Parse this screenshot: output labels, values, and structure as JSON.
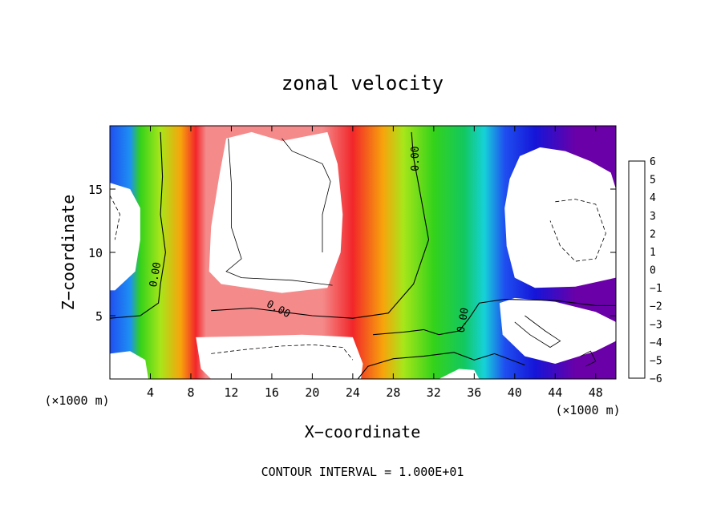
{
  "chart_data": {
    "type": "heatmap",
    "title": "zonal velocity",
    "xlabel": "X−coordinate",
    "ylabel": "Z−coordinate",
    "x_unit_left": "(×1000 m)",
    "x_unit_right": "(×1000 m)",
    "footer": "CONTOUR INTERVAL = 1.000E+01",
    "xlim": [
      0,
      50
    ],
    "ylim": [
      0,
      20
    ],
    "x_ticks": [
      {
        "value": 4,
        "label": "4"
      },
      {
        "value": 8,
        "label": "8"
      },
      {
        "value": 12,
        "label": "12"
      },
      {
        "value": 16,
        "label": "16"
      },
      {
        "value": 20,
        "label": "20"
      },
      {
        "value": 24,
        "label": "24"
      },
      {
        "value": 28,
        "label": "28"
      },
      {
        "value": 32,
        "label": "32"
      },
      {
        "value": 36,
        "label": "36"
      },
      {
        "value": 40,
        "label": "40"
      },
      {
        "value": 44,
        "label": "44"
      },
      {
        "value": 48,
        "label": "48"
      }
    ],
    "y_ticks": [
      {
        "value": 5,
        "label": "5"
      },
      {
        "value": 10,
        "label": "10"
      },
      {
        "value": 15,
        "label": "15"
      }
    ],
    "colorbar": {
      "min": -6,
      "max": 6,
      "labels": [
        {
          "value": 6,
          "label": "6"
        },
        {
          "value": 5,
          "label": "5"
        },
        {
          "value": 4,
          "label": "4"
        },
        {
          "value": 3,
          "label": "3"
        },
        {
          "value": 2,
          "label": "2"
        },
        {
          "value": 1,
          "label": "1"
        },
        {
          "value": 0,
          "label": "0"
        },
        {
          "value": -1,
          "label": "−1"
        },
        {
          "value": -2,
          "label": "−2"
        },
        {
          "value": -3,
          "label": "−3"
        },
        {
          "value": -4,
          "label": "−4"
        },
        {
          "value": -5,
          "label": "−5"
        },
        {
          "value": -6,
          "label": "−6"
        }
      ],
      "colors": [
        "#6a00a8",
        "#1515d8",
        "#1f4ff0",
        "#1e90f2",
        "#16d2d8",
        "#12c860",
        "#34d21a",
        "#a8e61a",
        "#f2e20c",
        "#f7a40c",
        "#f25a12",
        "#f2262a",
        "#f58a8a"
      ]
    },
    "contour_labels": [
      "0.00",
      "0.00",
      "0.00",
      "0.00"
    ],
    "bands": [
      {
        "x": 0,
        "value": -4.5,
        "saturated": "low"
      },
      {
        "x": 2,
        "value": -3,
        "saturated": null
      },
      {
        "x": 3,
        "value": 0,
        "saturated": null
      },
      {
        "x": 5,
        "value": 0.5,
        "saturated": null
      },
      {
        "x": 7,
        "value": 2.5,
        "saturated": null
      },
      {
        "x": 8.5,
        "value": 4.5,
        "saturated": null
      },
      {
        "x": 9.5,
        "value": 6,
        "saturated": "high"
      },
      {
        "x": 21,
        "value": 6,
        "saturated": "high"
      },
      {
        "x": 24,
        "value": 5,
        "saturated": null
      },
      {
        "x": 27,
        "value": 3,
        "saturated": null
      },
      {
        "x": 29,
        "value": 1,
        "saturated": null
      },
      {
        "x": 32,
        "value": 0,
        "saturated": null
      },
      {
        "x": 35,
        "value": -1,
        "saturated": null
      },
      {
        "x": 37,
        "value": -2.5,
        "saturated": null
      },
      {
        "x": 39,
        "value": -4,
        "saturated": null
      },
      {
        "x": 42,
        "value": -5,
        "saturated": null
      },
      {
        "x": 46,
        "value": -6,
        "saturated": "low"
      },
      {
        "x": 50,
        "value": -6,
        "saturated": "low"
      }
    ],
    "saturated_regions": [
      {
        "name": "white-region-top-center",
        "level": "high",
        "points": [
          [
            11.5,
            19
          ],
          [
            14,
            19.5
          ],
          [
            17,
            18.8
          ],
          [
            21.5,
            19.5
          ],
          [
            22.5,
            17
          ],
          [
            23,
            13
          ],
          [
            22.8,
            10
          ],
          [
            21.5,
            7.2
          ],
          [
            17,
            6.8
          ],
          [
            11,
            7.5
          ],
          [
            9.8,
            8.5
          ],
          [
            10,
            12
          ],
          [
            10.8,
            16
          ]
        ]
      },
      {
        "name": "white-region-left",
        "level": "low",
        "points": [
          [
            0,
            15.5
          ],
          [
            2,
            15
          ],
          [
            3,
            13.5
          ],
          [
            3,
            11
          ],
          [
            2.5,
            8.5
          ],
          [
            0.5,
            7
          ],
          [
            0,
            7
          ]
        ]
      },
      {
        "name": "white-region-top-right",
        "level": "low",
        "points": [
          [
            39.5,
            15.8
          ],
          [
            40.5,
            17.6
          ],
          [
            42.5,
            18.3
          ],
          [
            45,
            18
          ],
          [
            47.5,
            17.2
          ],
          [
            49.5,
            16.3
          ],
          [
            50,
            15
          ],
          [
            50,
            8
          ],
          [
            46,
            7.3
          ],
          [
            42,
            7.2
          ],
          [
            40,
            8
          ],
          [
            39.2,
            10.5
          ],
          [
            39,
            13.5
          ]
        ]
      },
      {
        "name": "white-region-bottom-center",
        "level": "high",
        "points": [
          [
            8.5,
            3.3
          ],
          [
            15,
            3.4
          ],
          [
            19,
            3.5
          ],
          [
            24,
            3.3
          ],
          [
            25,
            1.2
          ],
          [
            24.8,
            0
          ],
          [
            10,
            0
          ],
          [
            9,
            0.8
          ]
        ]
      },
      {
        "name": "white-region-bottom-right",
        "level": "high",
        "points": [
          [
            38.5,
            6
          ],
          [
            40,
            6.4
          ],
          [
            44,
            6.1
          ],
          [
            48,
            5.3
          ],
          [
            50,
            4.5
          ],
          [
            50,
            3
          ],
          [
            48,
            2.2
          ],
          [
            44,
            1.2
          ],
          [
            41,
            1.8
          ],
          [
            38.8,
            3.5
          ]
        ]
      },
      {
        "name": "white-region-bottom-mid",
        "level": "low",
        "points": [
          [
            32.5,
            0
          ],
          [
            34.5,
            0.8
          ],
          [
            36,
            0.7
          ],
          [
            36.5,
            0
          ]
        ]
      },
      {
        "name": "white-region-bottom-left",
        "level": "high",
        "points": [
          [
            0,
            2
          ],
          [
            2,
            2.2
          ],
          [
            3.5,
            1.5
          ],
          [
            3.8,
            0
          ],
          [
            0,
            0
          ]
        ]
      }
    ],
    "zero_contours": [
      [
        [
          5,
          19.5
        ],
        [
          5.2,
          16
        ],
        [
          5,
          13
        ],
        [
          5.5,
          10
        ],
        [
          5,
          7.5
        ],
        [
          4.8,
          6
        ],
        [
          3,
          5
        ],
        [
          0,
          4.8
        ]
      ],
      [
        [
          10,
          5.4
        ],
        [
          14,
          5.6
        ],
        [
          17,
          5.3
        ],
        [
          20,
          5
        ],
        [
          24,
          4.8
        ],
        [
          27.5,
          5.2
        ],
        [
          30,
          7.5
        ],
        [
          31.5,
          11
        ],
        [
          30.7,
          14.5
        ],
        [
          30,
          17.5
        ],
        [
          29.8,
          19.5
        ]
      ],
      [
        [
          26,
          3.5
        ],
        [
          29,
          3.7
        ],
        [
          31,
          3.9
        ],
        [
          32.5,
          3.5
        ],
        [
          34.5,
          3.8
        ],
        [
          35.5,
          4.8
        ],
        [
          36.5,
          6
        ],
        [
          39,
          6.3
        ],
        [
          44,
          6.2
        ],
        [
          48,
          5.8
        ],
        [
          50,
          5.8
        ]
      ],
      [
        [
          24.5,
          0
        ],
        [
          25.5,
          1
        ],
        [
          28,
          1.6
        ],
        [
          31,
          1.8
        ],
        [
          34,
          2.1
        ],
        [
          36,
          1.5
        ],
        [
          38,
          2
        ],
        [
          41,
          1.1
        ]
      ]
    ],
    "other_contours": [
      [
        [
          11.7,
          19
        ],
        [
          12,
          15.5
        ],
        [
          12,
          12
        ],
        [
          13,
          9.5
        ],
        [
          11.5,
          8.5
        ],
        [
          13,
          8
        ],
        [
          18,
          7.8
        ],
        [
          22,
          7.4
        ]
      ],
      [
        [
          17,
          19
        ],
        [
          18,
          18
        ],
        [
          21,
          17
        ],
        [
          21.8,
          15.6
        ],
        [
          21,
          13
        ],
        [
          21,
          10
        ]
      ],
      [
        [
          40,
          4.5
        ],
        [
          41.5,
          3.5
        ],
        [
          43.5,
          2.5
        ],
        [
          44.5,
          3
        ],
        [
          43,
          3.8
        ],
        [
          41,
          5
        ]
      ],
      [
        [
          46.5,
          1.8
        ],
        [
          47.5,
          2.2
        ],
        [
          48,
          1.4
        ],
        [
          47,
          1
        ]
      ]
    ],
    "dashed_contours": [
      [
        [
          44,
          14
        ],
        [
          46,
          14.2
        ],
        [
          48,
          13.8
        ],
        [
          49,
          11.5
        ],
        [
          48,
          9.5
        ],
        [
          46,
          9.3
        ],
        [
          44.5,
          10.5
        ],
        [
          43.5,
          12.5
        ]
      ],
      [
        [
          10,
          2
        ],
        [
          13,
          2.3
        ],
        [
          17,
          2.6
        ],
        [
          20,
          2.7
        ],
        [
          23,
          2.5
        ],
        [
          24,
          1.5
        ]
      ],
      [
        [
          0,
          14.5
        ],
        [
          1,
          13
        ],
        [
          0.5,
          11
        ]
      ]
    ]
  }
}
